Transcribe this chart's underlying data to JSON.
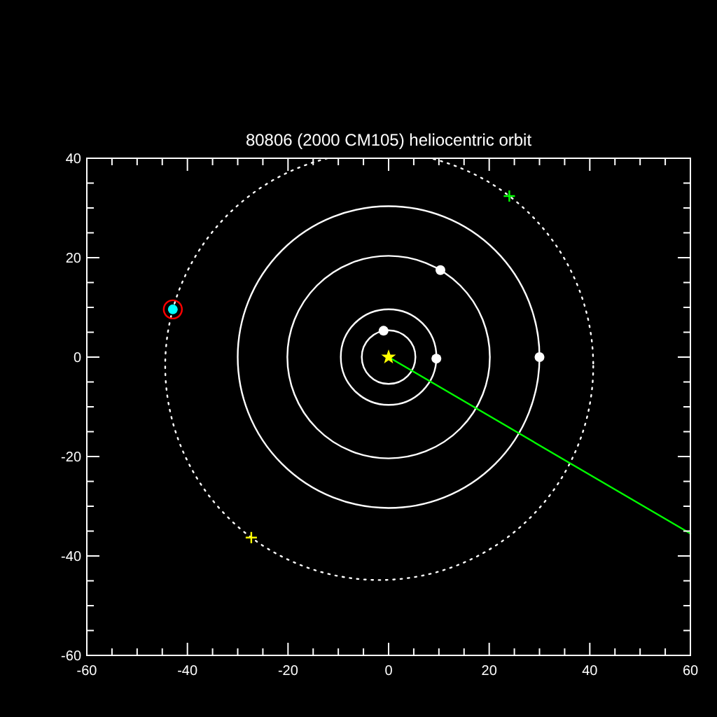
{
  "chart_data": {
    "type": "scatter",
    "title": "80806 (2000 CM105) heliocentric orbit",
    "xlim": [
      -60,
      60
    ],
    "ylim": [
      -60,
      40
    ],
    "xticks": [
      -60,
      -40,
      -20,
      0,
      20,
      40,
      60
    ],
    "yticks": [
      -60,
      -40,
      -20,
      0,
      20,
      40
    ],
    "series": [
      {
        "type": "line",
        "color": "#00ff00",
        "line_style": "solid",
        "x": [
          0,
          60
        ],
        "values": [
          0,
          -35.5
        ]
      },
      {
        "color": "#ffffff",
        "marker": "circle",
        "x": [
          -1,
          9.5,
          10.3,
          30
        ],
        "values": [
          5.3,
          -0.3,
          17.5,
          0
        ]
      },
      {
        "color": "#ffff00",
        "marker": "star",
        "x": [
          0
        ],
        "values": [
          0
        ]
      },
      {
        "color": "#00ffff",
        "marker": "circle",
        "x": [
          -42.9
        ],
        "values": [
          9.6
        ]
      },
      {
        "color": "#00ff00",
        "marker": "cross",
        "x": [
          24
        ],
        "values": [
          32.4
        ]
      },
      {
        "color": "#ffff00",
        "marker": "cross",
        "x": [
          -27.3
        ],
        "values": [
          -36.3
        ]
      }
    ]
  }
}
